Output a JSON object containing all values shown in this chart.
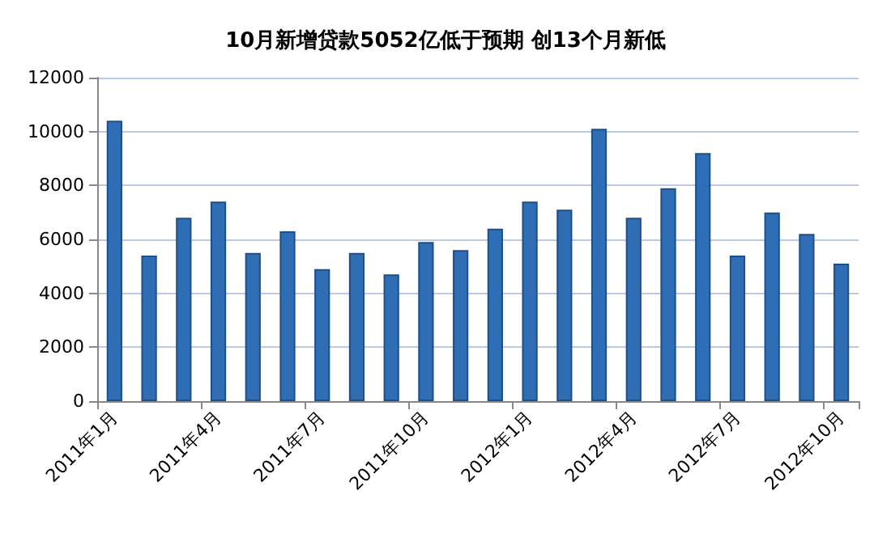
{
  "chart_data": {
    "type": "bar",
    "title": "10月新增贷款5052亿低于预期 创13个月新低",
    "categories": [
      "2011年1月",
      null,
      null,
      "2011年4月",
      null,
      null,
      "2011年7月",
      null,
      null,
      "2011年10月",
      null,
      null,
      "2012年1月",
      null,
      null,
      "2012年4月",
      null,
      null,
      "2012年7月",
      null,
      null,
      "2012年10月"
    ],
    "values": [
      10400,
      5400,
      6800,
      7400,
      5500,
      6300,
      4900,
      5500,
      4700,
      5900,
      5600,
      6400,
      7400,
      7100,
      10100,
      6800,
      7900,
      9200,
      5400,
      7000,
      6200,
      5100
    ],
    "color": "#2f6db5",
    "ylim": [
      0,
      12000
    ],
    "yticks": [
      0,
      2000,
      4000,
      6000,
      8000,
      10000,
      12000
    ],
    "grid": "y"
  }
}
